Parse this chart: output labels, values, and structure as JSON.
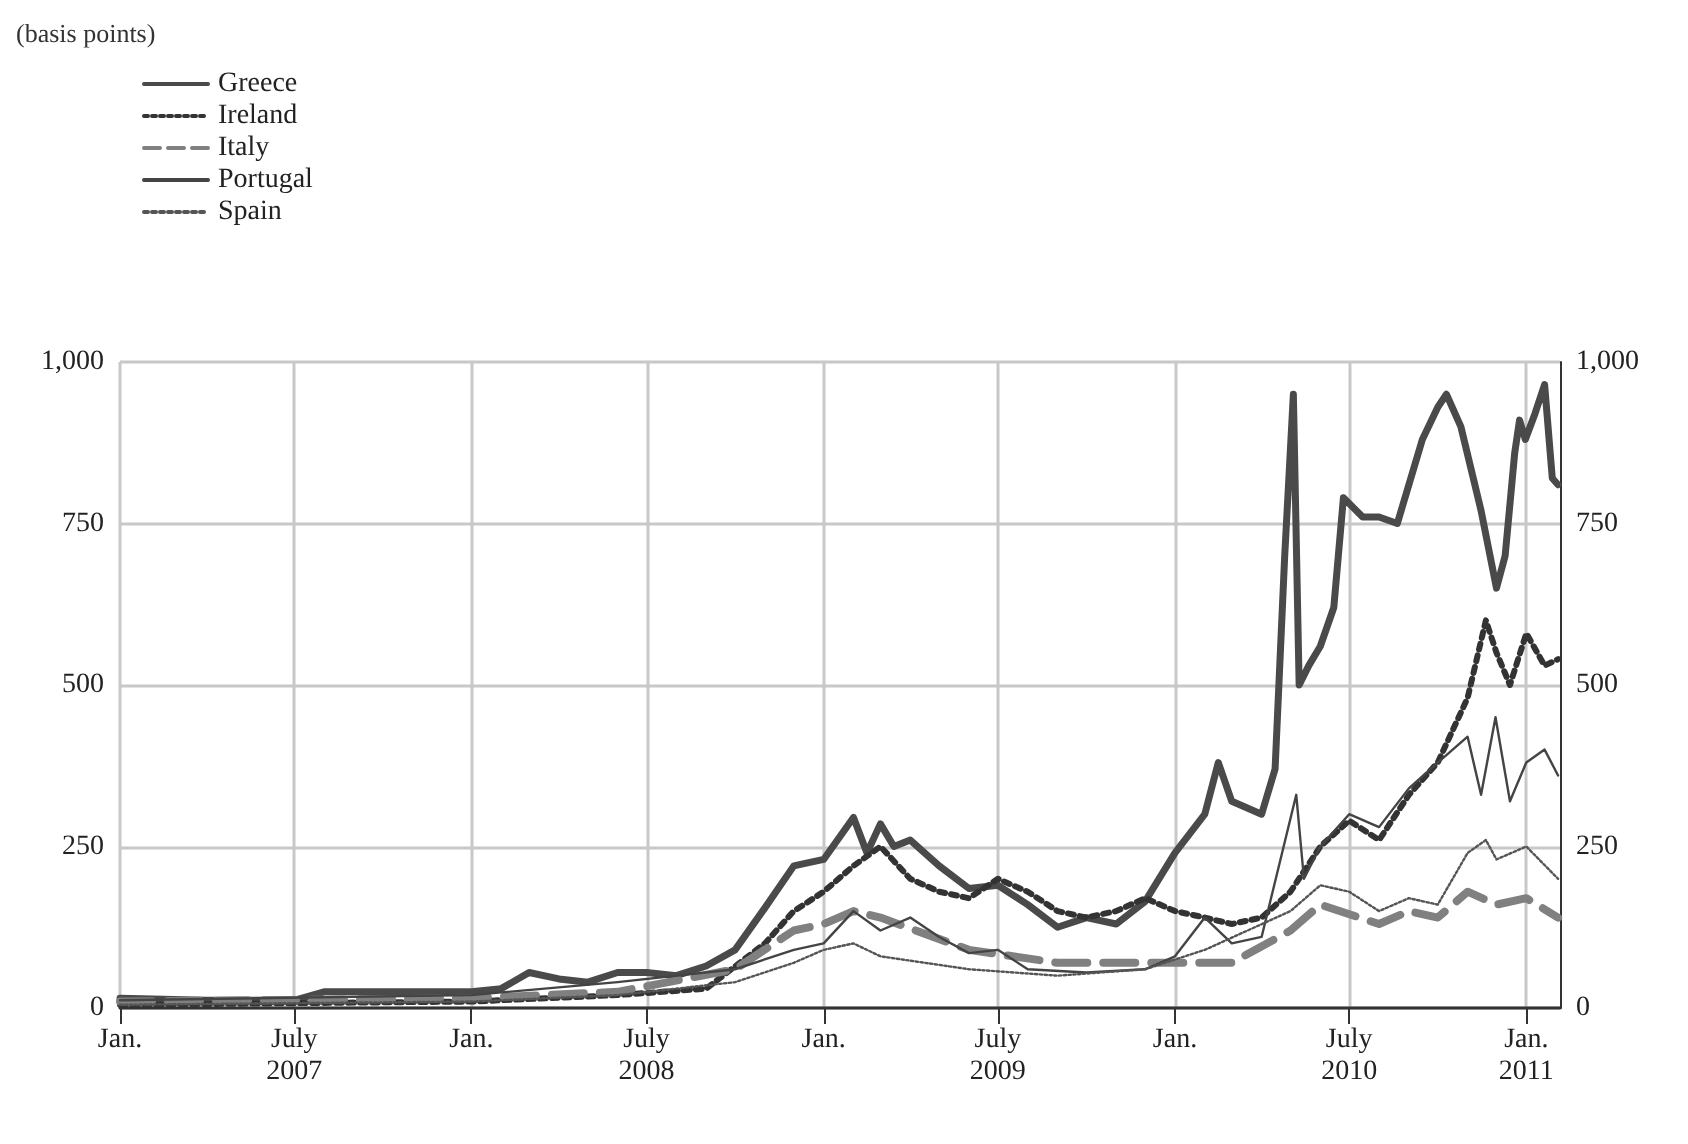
{
  "chart_data": {
    "type": "line",
    "annotations": [
      "(basis points)"
    ],
    "legend": "top left",
    "grid": true,
    "marker": "none",
    "xlim": [
      "2007-01-01",
      "2011-02-05"
    ],
    "xticks": [
      {
        "value": "2007-01-01",
        "label": "Jan."
      },
      {
        "value": "2007-07-01",
        "label": "July\n2007"
      },
      {
        "value": "2008-01-01",
        "label": "Jan."
      },
      {
        "value": "2008-07-01",
        "label": "July\n2008"
      },
      {
        "value": "2009-01-01",
        "label": "Jan."
      },
      {
        "value": "2009-07-01",
        "label": "July\n2009"
      },
      {
        "value": "2010-01-01",
        "label": "Jan."
      },
      {
        "value": "2010-07-01",
        "label": "July\n2010"
      },
      {
        "value": "2011-01-01",
        "label": "Jan.\n2011"
      }
    ],
    "ylim": [
      0,
      1000
    ],
    "yticks": [
      0,
      250,
      500,
      750,
      {
        "value": 1000,
        "label": "1,000"
      }
    ],
    "y2lim": [
      0,
      1000
    ],
    "y2ticks": [
      0,
      250,
      500,
      750,
      {
        "value": 1000,
        "label": "1,000"
      }
    ],
    "series": [
      {
        "name": "Greece",
        "color": "#4a4a4a",
        "line_style": "solid",
        "x": [
          "2007-01-01",
          "2007-04-01",
          "2007-07-01",
          "2007-08-01",
          "2007-10-01",
          "2008-01-01",
          "2008-02-01",
          "2008-03-01",
          "2008-04-01",
          "2008-05-01",
          "2008-06-01",
          "2008-07-01",
          "2008-08-01",
          "2008-09-01",
          "2008-10-01",
          "2008-11-01",
          "2008-12-01",
          "2009-01-01",
          "2009-02-01",
          "2009-02-15",
          "2009-03-01",
          "2009-03-15",
          "2009-04-01",
          "2009-05-01",
          "2009-06-01",
          "2009-07-01",
          "2009-08-01",
          "2009-09-01",
          "2009-10-01",
          "2009-11-01",
          "2009-12-01",
          "2010-01-01",
          "2010-02-01",
          "2010-02-15",
          "2010-03-01",
          "2010-04-01",
          "2010-04-15",
          "2010-04-25",
          "2010-05-04",
          "2010-05-10",
          "2010-05-20",
          "2010-06-01",
          "2010-06-15",
          "2010-06-25",
          "2010-07-15",
          "2010-08-01",
          "2010-08-20",
          "2010-09-15",
          "2010-10-01",
          "2010-10-10",
          "2010-10-25",
          "2010-11-15",
          "2010-12-01",
          "2010-12-10",
          "2010-12-20",
          "2010-12-25",
          "2010-12-31",
          "2011-01-10",
          "2011-01-20",
          "2011-01-28",
          "2011-02-03"
        ],
        "values": [
          15,
          12,
          12,
          25,
          25,
          25,
          30,
          55,
          45,
          40,
          55,
          55,
          50,
          65,
          90,
          155,
          220,
          230,
          295,
          240,
          285,
          250,
          260,
          220,
          185,
          190,
          160,
          125,
          140,
          130,
          165,
          240,
          300,
          380,
          320,
          300,
          370,
          700,
          950,
          500,
          530,
          560,
          620,
          790,
          760,
          760,
          750,
          880,
          930,
          950,
          900,
          770,
          650,
          700,
          860,
          910,
          880,
          920,
          965,
          820,
          810
        ]
      },
      {
        "name": "Ireland",
        "color": "#333333",
        "line_style": "dotted",
        "x": [
          "2007-01-01",
          "2008-01-01",
          "2008-06-01",
          "2008-09-01",
          "2008-11-01",
          "2008-12-01",
          "2009-01-01",
          "2009-02-01",
          "2009-03-01",
          "2009-04-01",
          "2009-05-01",
          "2009-06-01",
          "2009-07-01",
          "2009-08-01",
          "2009-09-01",
          "2009-10-01",
          "2009-11-01",
          "2009-12-01",
          "2010-01-01",
          "2010-02-01",
          "2010-03-01",
          "2010-04-01",
          "2010-05-01",
          "2010-06-01",
          "2010-07-01",
          "2010-08-01",
          "2010-09-01",
          "2010-10-01",
          "2010-11-01",
          "2010-11-20",
          "2010-12-01",
          "2010-12-15",
          "2011-01-01",
          "2011-01-20",
          "2011-02-03"
        ],
        "values": [
          5,
          10,
          20,
          30,
          100,
          150,
          180,
          220,
          250,
          200,
          180,
          170,
          200,
          180,
          150,
          140,
          150,
          170,
          150,
          140,
          130,
          140,
          180,
          250,
          290,
          260,
          330,
          380,
          480,
          600,
          550,
          500,
          580,
          530,
          540
        ]
      },
      {
        "name": "Italy",
        "color": "#808080",
        "line_style": "dashed",
        "x": [
          "2007-01-01",
          "2008-01-01",
          "2008-06-01",
          "2008-10-01",
          "2008-12-01",
          "2009-01-01",
          "2009-02-01",
          "2009-03-01",
          "2009-06-01",
          "2009-09-01",
          "2009-12-01",
          "2010-03-01",
          "2010-05-01",
          "2010-06-01",
          "2010-08-01",
          "2010-09-01",
          "2010-10-01",
          "2010-11-01",
          "2010-12-01",
          "2011-01-01",
          "2011-02-03"
        ],
        "values": [
          10,
          15,
          25,
          60,
          120,
          130,
          150,
          140,
          90,
          70,
          70,
          70,
          120,
          160,
          130,
          150,
          140,
          180,
          160,
          170,
          140
        ]
      },
      {
        "name": "Portugal",
        "color": "#444444",
        "line_style": "solid",
        "x": [
          "2007-01-01",
          "2008-01-01",
          "2008-06-01",
          "2008-10-01",
          "2008-12-01",
          "2009-01-01",
          "2009-02-01",
          "2009-03-01",
          "2009-04-01",
          "2009-05-01",
          "2009-06-01",
          "2009-07-01",
          "2009-08-01",
          "2009-10-01",
          "2009-12-01",
          "2010-01-01",
          "2010-02-01",
          "2010-03-01",
          "2010-04-01",
          "2010-05-07",
          "2010-05-15",
          "2010-06-01",
          "2010-07-01",
          "2010-08-01",
          "2010-09-01",
          "2010-10-01",
          "2010-11-01",
          "2010-11-15",
          "2010-11-30",
          "2010-12-15",
          "2011-01-01",
          "2011-01-20",
          "2011-02-03"
        ],
        "values": [
          12,
          20,
          40,
          60,
          90,
          100,
          150,
          120,
          140,
          110,
          85,
          90,
          60,
          55,
          60,
          80,
          140,
          100,
          110,
          330,
          200,
          250,
          300,
          280,
          340,
          380,
          420,
          330,
          450,
          320,
          380,
          400,
          360
        ]
      },
      {
        "name": "Spain",
        "color": "#555555",
        "line_style": "dotted",
        "x": [
          "2007-01-01",
          "2008-01-01",
          "2008-06-01",
          "2008-10-01",
          "2008-12-01",
          "2009-01-01",
          "2009-02-01",
          "2009-03-01",
          "2009-06-01",
          "2009-09-01",
          "2009-12-01",
          "2010-02-01",
          "2010-05-01",
          "2010-06-01",
          "2010-07-01",
          "2010-08-01",
          "2010-09-01",
          "2010-10-01",
          "2010-11-01",
          "2010-11-20",
          "2010-12-01",
          "2011-01-01",
          "2011-02-03"
        ],
        "values": [
          5,
          10,
          20,
          40,
          70,
          90,
          100,
          80,
          60,
          50,
          60,
          90,
          150,
          190,
          180,
          150,
          170,
          160,
          240,
          260,
          230,
          250,
          200
        ]
      }
    ]
  }
}
